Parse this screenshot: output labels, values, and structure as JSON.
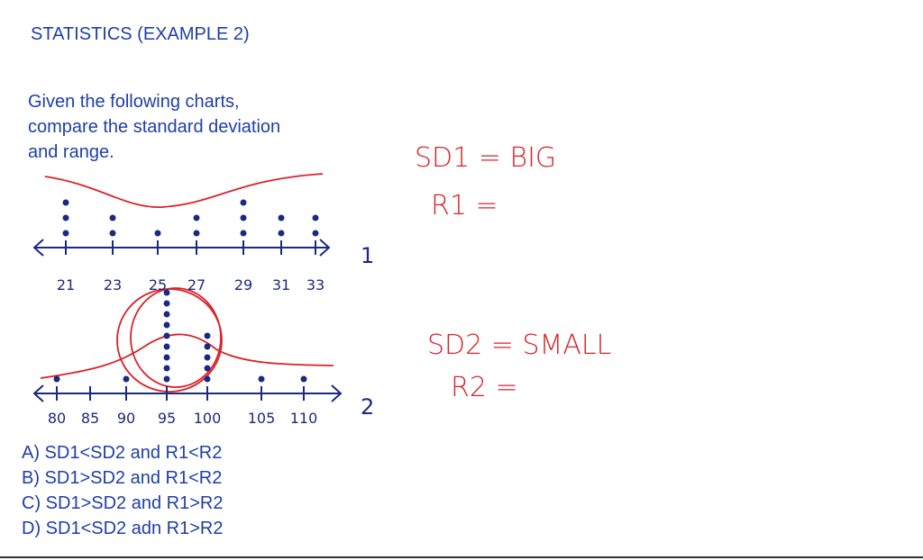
{
  "header": {
    "title": "STATISTICS (EXAMPLE 2)"
  },
  "question": [
    "Given the following charts,",
    "compare the standard deviation",
    "and range."
  ],
  "plots": [
    {
      "label": "1",
      "ticks": [
        "21",
        "23",
        "25",
        "27",
        "29",
        "31",
        "33"
      ],
      "counts": [
        3,
        2,
        1,
        2,
        3,
        2,
        2
      ]
    },
    {
      "label": "2",
      "ticks": [
        "80",
        "85",
        "90",
        "95",
        "100",
        "105",
        "110"
      ],
      "counts": [
        1,
        0,
        1,
        9,
        5,
        1,
        1
      ]
    }
  ],
  "notes": [
    "SD1 = BIG",
    "R1 =",
    "SD2 = SMALL",
    "R2 ="
  ],
  "options": [
    "A) SD1<SD2 and R1<R2",
    "B) SD1>SD2 and R1<R2",
    "C) SD1>SD2 and R1>R2",
    "D) SD1<SD2 adn R1>R2"
  ]
}
